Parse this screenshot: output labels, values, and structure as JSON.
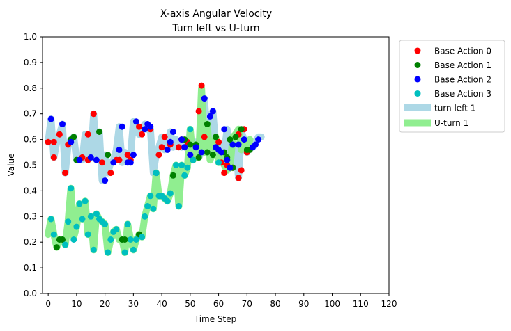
{
  "chart_data": {
    "type": "scatter",
    "title": "X-axis Angular Velocity",
    "subtitle": "Turn left vs U-turn",
    "xlabel": "Time Step",
    "ylabel": "Value",
    "xlim": [
      -2,
      120
    ],
    "ylim": [
      0.0,
      1.0
    ],
    "x_ticks": [
      0,
      10,
      20,
      30,
      40,
      50,
      60,
      70,
      80,
      90,
      100,
      110,
      120
    ],
    "y_ticks": [
      "0.0",
      "0.1",
      "0.2",
      "0.3",
      "0.4",
      "0.5",
      "0.6",
      "0.7",
      "0.8",
      "0.9",
      "1.0"
    ],
    "grid": false,
    "legend_position": "outside-top-right",
    "lines": [
      {
        "name": "turn left 1",
        "color": "#add8e6",
        "x": [
          0,
          1,
          2,
          3,
          4,
          5,
          6,
          7,
          8,
          9,
          10,
          11,
          12,
          13,
          14,
          15,
          16,
          17,
          18,
          19,
          20,
          21,
          22,
          23,
          24,
          25,
          26,
          27,
          28,
          29,
          30,
          31,
          32,
          33,
          34,
          35,
          36,
          37,
          38,
          39,
          40,
          41,
          42,
          43,
          44,
          45,
          46,
          47,
          48,
          49,
          50,
          51,
          52,
          53,
          54,
          55,
          56,
          57,
          58,
          59,
          60,
          61,
          62,
          63,
          64,
          65,
          66,
          67,
          68,
          69,
          70,
          71,
          72,
          73,
          74,
          75
        ],
        "y": [
          0.59,
          0.68,
          0.53,
          0.59,
          0.62,
          0.66,
          0.47,
          0.58,
          0.6,
          0.61,
          0.52,
          0.53,
          0.52,
          0.62,
          0.52,
          0.53,
          0.7,
          0.52,
          0.63,
          0.44,
          0.54,
          0.47,
          0.51,
          0.52,
          0.56,
          0.65,
          0.51,
          0.55,
          0.52,
          0.54,
          0.67,
          0.65,
          0.62,
          0.64,
          0.66,
          0.64,
          0.64,
          0.47,
          0.54,
          0.57,
          0.61,
          0.56,
          0.58,
          0.63,
          0.57,
          0.6,
          0.58,
          0.57,
          0.59,
          0.6,
          0.56,
          0.56,
          0.59,
          0.53,
          0.55,
          0.76,
          0.61,
          0.69,
          0.71,
          0.57,
          0.58,
          0.51,
          0.55,
          0.64,
          0.5,
          0.49,
          0.58,
          0.45,
          0.63,
          0.6,
          0.55,
          0.57,
          0.57,
          0.59,
          0.61,
          0.61
        ]
      },
      {
        "name": "U-turn 1",
        "color": "#90ee90",
        "x": [
          0,
          1,
          2,
          3,
          4,
          5,
          6,
          7,
          8,
          9,
          10,
          11,
          12,
          13,
          14,
          15,
          16,
          17,
          18,
          19,
          20,
          21,
          22,
          23,
          24,
          25,
          26,
          27,
          28,
          29,
          30,
          31,
          32,
          33,
          34,
          35,
          36,
          37,
          38,
          39,
          40,
          41,
          42,
          43,
          44,
          45,
          46,
          47,
          48,
          49,
          50,
          51,
          52,
          53,
          54,
          55,
          56,
          57,
          58,
          59,
          60,
          61,
          62,
          63,
          64,
          65,
          66,
          67,
          68,
          69,
          70,
          71
        ],
        "y": [
          0.23,
          0.29,
          0.23,
          0.18,
          0.21,
          0.21,
          0.19,
          0.28,
          0.41,
          0.22,
          0.26,
          0.35,
          0.29,
          0.36,
          0.23,
          0.3,
          0.17,
          0.31,
          0.29,
          0.28,
          0.27,
          0.16,
          0.21,
          0.24,
          0.25,
          0.21,
          0.21,
          0.16,
          0.27,
          0.21,
          0.17,
          0.21,
          0.23,
          0.22,
          0.3,
          0.34,
          0.38,
          0.33,
          0.47,
          0.38,
          0.38,
          0.37,
          0.36,
          0.39,
          0.46,
          0.5,
          0.34,
          0.5,
          0.46,
          0.49,
          0.64,
          0.52,
          0.58,
          0.53,
          0.8,
          0.55,
          0.66,
          0.52,
          0.55,
          0.61,
          0.51,
          0.53,
          0.5,
          0.48,
          0.49,
          0.61,
          0.62,
          0.64,
          0.56,
          0.58,
          0.56,
          0.6
        ]
      }
    ],
    "series": [
      {
        "name": "Base Action 0",
        "color": "#ff0000",
        "points": [
          [
            0,
            0.59
          ],
          [
            2,
            0.59
          ],
          [
            2,
            0.53
          ],
          [
            4,
            0.62
          ],
          [
            6,
            0.47
          ],
          [
            7,
            0.58
          ],
          [
            12,
            0.53
          ],
          [
            14,
            0.62
          ],
          [
            14,
            0.52
          ],
          [
            16,
            0.7
          ],
          [
            19,
            0.51
          ],
          [
            22,
            0.47
          ],
          [
            24,
            0.52
          ],
          [
            25,
            0.52
          ],
          [
            28,
            0.54
          ],
          [
            29,
            0.52
          ],
          [
            32,
            0.65
          ],
          [
            33,
            0.62
          ],
          [
            36,
            0.64
          ],
          [
            39,
            0.54
          ],
          [
            40,
            0.57
          ],
          [
            41,
            0.61
          ],
          [
            43,
            0.58
          ],
          [
            46,
            0.57
          ],
          [
            47,
            0.6
          ],
          [
            49,
            0.59
          ],
          [
            53,
            0.71
          ],
          [
            54,
            0.81
          ],
          [
            55,
            0.61
          ],
          [
            60,
            0.59
          ],
          [
            61,
            0.51
          ],
          [
            62,
            0.47
          ],
          [
            63,
            0.5
          ],
          [
            65,
            0.49
          ],
          [
            67,
            0.62
          ],
          [
            67,
            0.45
          ],
          [
            68,
            0.48
          ],
          [
            69,
            0.64
          ],
          [
            70,
            0.55
          ]
        ]
      },
      {
        "name": "Base Action 1",
        "color": "#008000",
        "points": [
          [
            3,
            0.18
          ],
          [
            4,
            0.21
          ],
          [
            5,
            0.21
          ],
          [
            8,
            0.6
          ],
          [
            9,
            0.61
          ],
          [
            10,
            0.52
          ],
          [
            18,
            0.63
          ],
          [
            21,
            0.54
          ],
          [
            26,
            0.21
          ],
          [
            27,
            0.21
          ],
          [
            32,
            0.23
          ],
          [
            44,
            0.46
          ],
          [
            48,
            0.6
          ],
          [
            50,
            0.58
          ],
          [
            51,
            0.52
          ],
          [
            52,
            0.58
          ],
          [
            53,
            0.53
          ],
          [
            56,
            0.66
          ],
          [
            56,
            0.55
          ],
          [
            58,
            0.54
          ],
          [
            59,
            0.61
          ],
          [
            62,
            0.55
          ],
          [
            63,
            0.53
          ],
          [
            64,
            0.6
          ],
          [
            65,
            0.49
          ],
          [
            66,
            0.61
          ],
          [
            68,
            0.64
          ],
          [
            70,
            0.56
          ],
          [
            71,
            0.56
          ]
        ]
      },
      {
        "name": "Base Action 2",
        "color": "#0000ff",
        "points": [
          [
            1,
            0.68
          ],
          [
            5,
            0.66
          ],
          [
            8,
            0.59
          ],
          [
            11,
            0.52
          ],
          [
            15,
            0.53
          ],
          [
            17,
            0.52
          ],
          [
            20,
            0.44
          ],
          [
            23,
            0.51
          ],
          [
            25,
            0.56
          ],
          [
            26,
            0.65
          ],
          [
            28,
            0.51
          ],
          [
            29,
            0.51
          ],
          [
            30,
            0.54
          ],
          [
            31,
            0.67
          ],
          [
            34,
            0.64
          ],
          [
            35,
            0.66
          ],
          [
            36,
            0.65
          ],
          [
            38,
            0.47
          ],
          [
            42,
            0.56
          ],
          [
            43,
            0.59
          ],
          [
            44,
            0.63
          ],
          [
            47,
            0.6
          ],
          [
            48,
            0.57
          ],
          [
            50,
            0.54
          ],
          [
            52,
            0.57
          ],
          [
            54,
            0.55
          ],
          [
            55,
            0.76
          ],
          [
            57,
            0.69
          ],
          [
            58,
            0.71
          ],
          [
            59,
            0.57
          ],
          [
            60,
            0.56
          ],
          [
            61,
            0.55
          ],
          [
            62,
            0.64
          ],
          [
            63,
            0.52
          ],
          [
            64,
            0.49
          ],
          [
            65,
            0.58
          ],
          [
            67,
            0.58
          ],
          [
            69,
            0.6
          ],
          [
            72,
            0.57
          ],
          [
            73,
            0.58
          ],
          [
            74,
            0.6
          ]
        ]
      },
      {
        "name": "Base Action 3",
        "color": "#00bfbf",
        "points": [
          [
            1,
            0.29
          ],
          [
            2,
            0.23
          ],
          [
            6,
            0.19
          ],
          [
            7,
            0.28
          ],
          [
            8,
            0.41
          ],
          [
            9,
            0.21
          ],
          [
            10,
            0.26
          ],
          [
            11,
            0.35
          ],
          [
            12,
            0.29
          ],
          [
            13,
            0.36
          ],
          [
            14,
            0.23
          ],
          [
            15,
            0.3
          ],
          [
            16,
            0.17
          ],
          [
            17,
            0.31
          ],
          [
            18,
            0.29
          ],
          [
            19,
            0.28
          ],
          [
            20,
            0.27
          ],
          [
            21,
            0.16
          ],
          [
            22,
            0.21
          ],
          [
            23,
            0.24
          ],
          [
            24,
            0.25
          ],
          [
            27,
            0.16
          ],
          [
            28,
            0.27
          ],
          [
            29,
            0.21
          ],
          [
            30,
            0.17
          ],
          [
            31,
            0.21
          ],
          [
            33,
            0.22
          ],
          [
            34,
            0.3
          ],
          [
            35,
            0.34
          ],
          [
            36,
            0.38
          ],
          [
            37,
            0.33
          ],
          [
            38,
            0.47
          ],
          [
            39,
            0.38
          ],
          [
            40,
            0.38
          ],
          [
            41,
            0.37
          ],
          [
            42,
            0.36
          ],
          [
            43,
            0.39
          ],
          [
            45,
            0.5
          ],
          [
            46,
            0.34
          ],
          [
            47,
            0.5
          ],
          [
            48,
            0.46
          ],
          [
            49,
            0.49
          ],
          [
            50,
            0.64
          ],
          [
            51,
            0.52
          ],
          [
            60,
            0.51
          ]
        ]
      }
    ]
  }
}
